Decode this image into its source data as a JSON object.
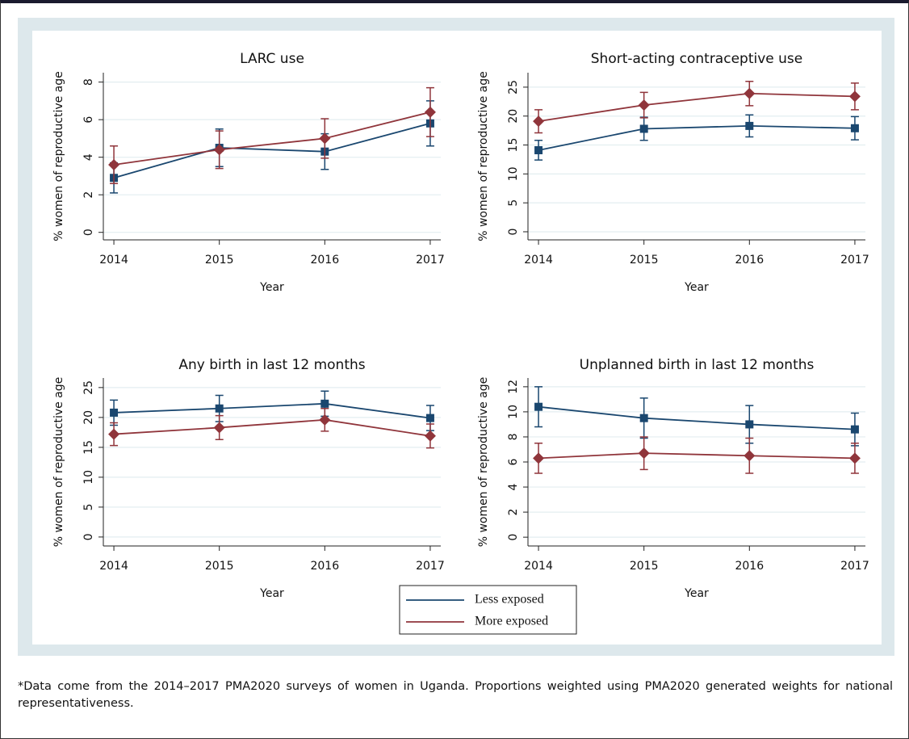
{
  "chart_data": [
    {
      "type": "line",
      "title": "LARC use",
      "xlabel": "Year",
      "ylabel": "% women of reproductive age",
      "x": [
        2014,
        2015,
        2016,
        2017
      ],
      "xlim": [
        2013.9,
        2017.1
      ],
      "xticks": [
        2014,
        2015,
        2016,
        2017
      ],
      "ylim": [
        -0.4,
        8.5
      ],
      "yticks": [
        0,
        2,
        4,
        6,
        8
      ],
      "grid": true,
      "series": [
        {
          "name": "Less exposed",
          "color": "#1a476f",
          "marker": "square",
          "values": [
            2.9,
            4.5,
            4.3,
            5.8
          ],
          "errors": [
            0.8,
            1.0,
            0.95,
            1.2
          ]
        },
        {
          "name": "More exposed",
          "color": "#90353b",
          "marker": "diamond",
          "values": [
            3.6,
            4.4,
            5.0,
            6.4
          ],
          "errors": [
            1.0,
            1.0,
            1.05,
            1.3
          ]
        }
      ]
    },
    {
      "type": "line",
      "title": "Short-acting contraceptive use",
      "xlabel": "Year",
      "ylabel": "% women of reproductive age",
      "x": [
        2014,
        2015,
        2016,
        2017
      ],
      "xlim": [
        2013.9,
        2017.1
      ],
      "xticks": [
        2014,
        2015,
        2016,
        2017
      ],
      "ylim": [
        -1.4,
        27.5
      ],
      "yticks": [
        0,
        5,
        10,
        15,
        20,
        25
      ],
      "grid": true,
      "series": [
        {
          "name": "Less exposed",
          "color": "#1a476f",
          "marker": "square",
          "values": [
            14.1,
            17.8,
            18.3,
            17.9
          ],
          "errors": [
            1.7,
            2.0,
            1.9,
            2.0
          ]
        },
        {
          "name": "More exposed",
          "color": "#90353b",
          "marker": "diamond",
          "values": [
            19.1,
            21.9,
            23.9,
            23.4
          ],
          "errors": [
            2.0,
            2.2,
            2.1,
            2.3
          ]
        }
      ]
    },
    {
      "type": "line",
      "title": "Any birth in last 12 months",
      "xlabel": "Year",
      "ylabel": "% women of reproductive age",
      "x": [
        2014,
        2015,
        2016,
        2017
      ],
      "xlim": [
        2013.9,
        2017.1
      ],
      "xticks": [
        2014,
        2015,
        2016,
        2017
      ],
      "ylim": [
        -1.5,
        26.6
      ],
      "yticks": [
        0,
        5,
        10,
        15,
        20,
        25
      ],
      "grid": true,
      "series": [
        {
          "name": "Less exposed",
          "color": "#1a476f",
          "marker": "square",
          "values": [
            20.8,
            21.5,
            22.3,
            19.9
          ],
          "errors": [
            2.1,
            2.2,
            2.1,
            2.1
          ]
        },
        {
          "name": "More exposed",
          "color": "#90353b",
          "marker": "diamond",
          "values": [
            17.2,
            18.3,
            19.6,
            16.9
          ],
          "errors": [
            1.9,
            2.0,
            1.9,
            2.0
          ]
        }
      ]
    },
    {
      "type": "line",
      "title": "Unplanned birth in last 12 months",
      "xlabel": "Year",
      "ylabel": "% women of reproductive age",
      "x": [
        2014,
        2015,
        2016,
        2017
      ],
      "xlim": [
        2013.9,
        2017.1
      ],
      "xticks": [
        2014,
        2015,
        2016,
        2017
      ],
      "ylim": [
        -0.7,
        12.7
      ],
      "yticks": [
        0,
        2,
        4,
        6,
        8,
        10,
        12
      ],
      "grid": true,
      "series": [
        {
          "name": "Less exposed",
          "color": "#1a476f",
          "marker": "square",
          "values": [
            10.4,
            9.5,
            9.0,
            8.6
          ],
          "errors": [
            1.6,
            1.6,
            1.5,
            1.3
          ]
        },
        {
          "name": "More exposed",
          "color": "#90353b",
          "marker": "diamond",
          "values": [
            6.3,
            6.7,
            6.5,
            6.3
          ],
          "errors": [
            1.2,
            1.3,
            1.4,
            1.2
          ]
        }
      ]
    }
  ],
  "footnote": "*Data come from the 2014–2017 PMA2020 surveys of women in Uganda. Proportions weighted using PMA2020 generated weights for national representativeness."
}
